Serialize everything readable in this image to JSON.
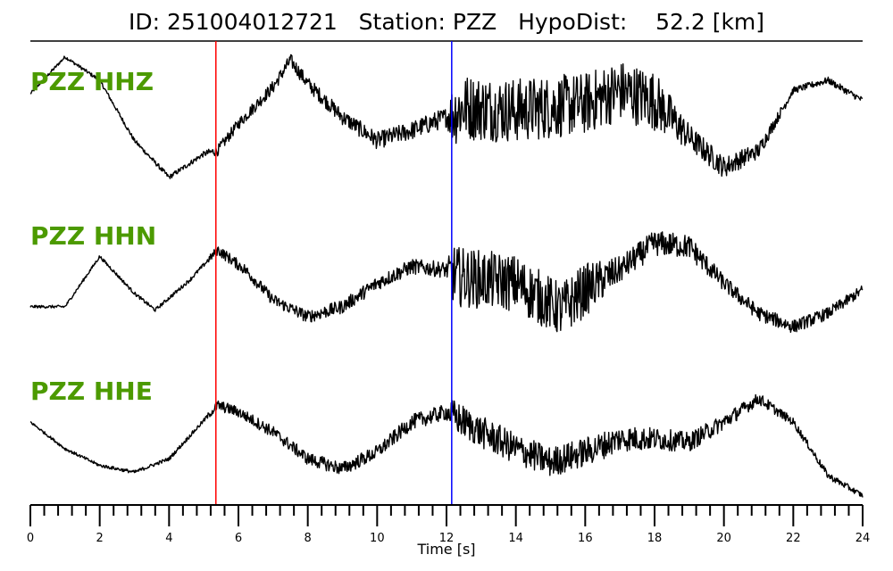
{
  "header": {
    "title": "ID: 251004012721   Station: PZZ   HypoDist:    52.2 [km]"
  },
  "chart_data": {
    "type": "line",
    "xlabel": "Time [s]",
    "xlim": [
      0,
      24
    ],
    "x_tick_values": [
      0,
      2,
      4,
      6,
      8,
      10,
      12,
      14,
      16,
      18,
      20,
      22,
      24
    ],
    "x_tick_labels": [
      "0",
      "2",
      "4",
      "6",
      "8",
      "10",
      "12",
      "14",
      "16",
      "18",
      "20",
      "22",
      "24"
    ],
    "minor_tick_step": 0.4,
    "grid": false,
    "trace_color": "#000000",
    "label_color": "#4c9a00",
    "markers": [
      {
        "x": 5.35,
        "color": "#ff0000"
      },
      {
        "x": 12.15,
        "color": "#0000ff"
      }
    ],
    "series": [
      {
        "name": "PZZ HHZ",
        "envelope": [
          [
            0,
            0.4
          ],
          [
            1,
            0.95
          ],
          [
            2,
            0.6
          ],
          [
            3,
            -0.3
          ],
          [
            4,
            -0.85
          ],
          [
            5,
            -0.5
          ],
          [
            5.4,
            -0.45
          ],
          [
            6,
            -0.05
          ],
          [
            7,
            0.5
          ],
          [
            7.5,
            0.9
          ],
          [
            8,
            0.55
          ],
          [
            9,
            0.05
          ],
          [
            10,
            -0.3
          ],
          [
            11,
            -0.15
          ],
          [
            12,
            0.05
          ],
          [
            12.5,
            0.2
          ],
          [
            14,
            0.15
          ],
          [
            16,
            0.25
          ],
          [
            17,
            0.45
          ],
          [
            18,
            0.3
          ],
          [
            19,
            -0.25
          ],
          [
            20,
            -0.7
          ],
          [
            21,
            -0.45
          ],
          [
            22,
            0.45
          ],
          [
            23,
            0.6
          ],
          [
            24,
            0.3
          ]
        ],
        "noise": [
          [
            0,
            0.02
          ],
          [
            5,
            0.04
          ],
          [
            5.4,
            0.08
          ],
          [
            12,
            0.15
          ],
          [
            12.2,
            0.5
          ],
          [
            18,
            0.45
          ],
          [
            19,
            0.2
          ],
          [
            21,
            0.12
          ],
          [
            22,
            0.05
          ],
          [
            24,
            0.05
          ]
        ]
      },
      {
        "name": "PZZ HHN",
        "envelope": [
          [
            0,
            -0.45
          ],
          [
            1,
            -0.45
          ],
          [
            2,
            0.3
          ],
          [
            3,
            -0.25
          ],
          [
            3.6,
            -0.5
          ],
          [
            4.6,
            -0.05
          ],
          [
            5.4,
            0.4
          ],
          [
            6.2,
            0.1
          ],
          [
            7,
            -0.35
          ],
          [
            8,
            -0.6
          ],
          [
            9,
            -0.45
          ],
          [
            10,
            -0.1
          ],
          [
            11,
            0.15
          ],
          [
            12,
            0.1
          ],
          [
            12.3,
            0.0
          ],
          [
            14,
            -0.1
          ],
          [
            15.3,
            -0.5
          ],
          [
            16,
            -0.2
          ],
          [
            17,
            0.1
          ],
          [
            18,
            0.5
          ],
          [
            19,
            0.45
          ],
          [
            20,
            -0.1
          ],
          [
            21,
            -0.55
          ],
          [
            22,
            -0.75
          ],
          [
            23,
            -0.55
          ],
          [
            24,
            -0.2
          ]
        ],
        "noise": [
          [
            0,
            0.02
          ],
          [
            5,
            0.03
          ],
          [
            5.4,
            0.08
          ],
          [
            12,
            0.12
          ],
          [
            12.2,
            0.45
          ],
          [
            16,
            0.4
          ],
          [
            17,
            0.2
          ],
          [
            19,
            0.18
          ],
          [
            20,
            0.12
          ],
          [
            24,
            0.08
          ]
        ]
      },
      {
        "name": "PZZ HHE",
        "envelope": [
          [
            0,
            0.2
          ],
          [
            1,
            -0.2
          ],
          [
            2,
            -0.45
          ],
          [
            3,
            -0.55
          ],
          [
            4,
            -0.35
          ],
          [
            5.4,
            0.45
          ],
          [
            6,
            0.35
          ],
          [
            7,
            0.05
          ],
          [
            8,
            -0.35
          ],
          [
            9,
            -0.5
          ],
          [
            10,
            -0.25
          ],
          [
            11,
            0.2
          ],
          [
            12,
            0.35
          ],
          [
            13,
            0.05
          ],
          [
            14,
            -0.2
          ],
          [
            15,
            -0.4
          ],
          [
            16,
            -0.25
          ],
          [
            17,
            -0.05
          ],
          [
            18,
            -0.05
          ],
          [
            19,
            -0.1
          ],
          [
            20,
            0.2
          ],
          [
            21,
            0.55
          ],
          [
            22,
            0.2
          ],
          [
            23,
            -0.6
          ],
          [
            24,
            -0.9
          ]
        ],
        "noise": [
          [
            0,
            0.02
          ],
          [
            5,
            0.03
          ],
          [
            5.4,
            0.08
          ],
          [
            12,
            0.12
          ],
          [
            12.2,
            0.25
          ],
          [
            16,
            0.22
          ],
          [
            20,
            0.12
          ],
          [
            22,
            0.06
          ],
          [
            24,
            0.04
          ]
        ]
      }
    ]
  }
}
